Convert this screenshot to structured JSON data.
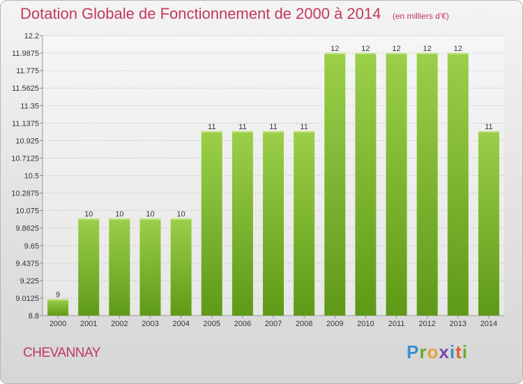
{
  "header": {
    "title": "Dotation Globale de Fonctionnement de 2000 à 2014",
    "subtitle": "(en milliers d'€)"
  },
  "footer": {
    "place_name": "CHEVANNAY",
    "logo_text": "Proxiti"
  },
  "colors": {
    "title": "#c0395b",
    "bar_top": "#9ccf4a",
    "bar_bottom": "#5e9a17",
    "grid": "#c8c8c8",
    "axis_text": "#333333"
  },
  "chart_data": {
    "type": "bar",
    "title": "Dotation Globale de Fonctionnement de 2000 à 2014",
    "subtitle": "(en milliers d'€)",
    "categories": [
      "2000",
      "2001",
      "2002",
      "2003",
      "2004",
      "2005",
      "2006",
      "2007",
      "2008",
      "2009",
      "2010",
      "2011",
      "2012",
      "2013",
      "2014"
    ],
    "values": [
      9,
      10,
      10,
      10,
      10,
      11,
      11,
      11,
      11,
      12,
      12,
      12,
      12,
      12,
      11
    ],
    "display_values": [
      9.0,
      9.98,
      9.98,
      9.98,
      9.98,
      11.04,
      11.04,
      11.04,
      11.04,
      11.99,
      11.99,
      11.99,
      11.99,
      11.99,
      11.04
    ],
    "value_labels": [
      "9",
      "10",
      "10",
      "10",
      "10",
      "11",
      "11",
      "11",
      "11",
      "12",
      "12",
      "12",
      "12",
      "12",
      "11"
    ],
    "ylim": [
      8.8,
      12.2
    ],
    "yticks": [
      "8.8",
      "9.0125",
      "9.225",
      "9.4375",
      "9.65",
      "9.8625",
      "10.075",
      "10.2875",
      "10.5",
      "10.7125",
      "10.925",
      "11.1375",
      "11.35",
      "11.5625",
      "11.775",
      "11.9875",
      "12.2"
    ],
    "xlabel": "",
    "ylabel": "",
    "grid": true,
    "legend": "none"
  }
}
